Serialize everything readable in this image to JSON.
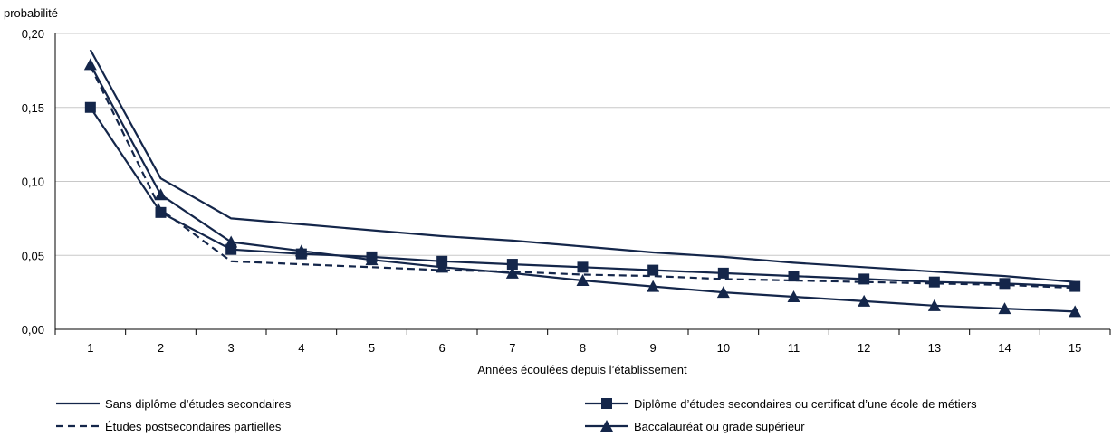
{
  "chart_data": {
    "type": "line",
    "ylabel": "probabilité",
    "xlabel": "Années écoulées depuis l’établissement",
    "x": [
      1,
      2,
      3,
      4,
      5,
      6,
      7,
      8,
      9,
      10,
      11,
      12,
      13,
      14,
      15
    ],
    "ylim": [
      0,
      0.2
    ],
    "yticks": [
      "0,00",
      "0,05",
      "0,10",
      "0,15",
      "0,20"
    ],
    "grid": "horizontal",
    "legend_position": "bottom",
    "colors": {
      "series": "#14264a",
      "grid": "#c8c8c8",
      "axis": "#000000"
    },
    "series": [
      {
        "name": "Sans diplôme d’études secondaires",
        "marker": "none",
        "dash": "solid",
        "values": [
          0.189,
          0.102,
          0.075,
          0.071,
          0.067,
          0.063,
          0.06,
          0.056,
          0.052,
          0.049,
          0.045,
          0.042,
          0.039,
          0.036,
          0.032
        ]
      },
      {
        "name": "Diplôme d’études secondaires ou certificat d’une école de métiers",
        "marker": "square",
        "dash": "solid",
        "values": [
          0.15,
          0.079,
          0.054,
          0.051,
          0.049,
          0.046,
          0.044,
          0.042,
          0.04,
          0.038,
          0.036,
          0.034,
          0.032,
          0.031,
          0.029
        ]
      },
      {
        "name": "Études postsecondaires partielles",
        "marker": "none",
        "dash": "dashed",
        "values": [
          0.178,
          0.081,
          0.046,
          0.044,
          0.042,
          0.04,
          0.039,
          0.037,
          0.036,
          0.034,
          0.033,
          0.032,
          0.031,
          0.03,
          0.028
        ]
      },
      {
        "name": "Baccalauréat ou grade supérieur",
        "marker": "triangle",
        "dash": "solid",
        "values": [
          0.179,
          0.091,
          0.059,
          0.053,
          0.047,
          0.042,
          0.038,
          0.033,
          0.029,
          0.025,
          0.022,
          0.019,
          0.016,
          0.014,
          0.012
        ]
      }
    ]
  }
}
